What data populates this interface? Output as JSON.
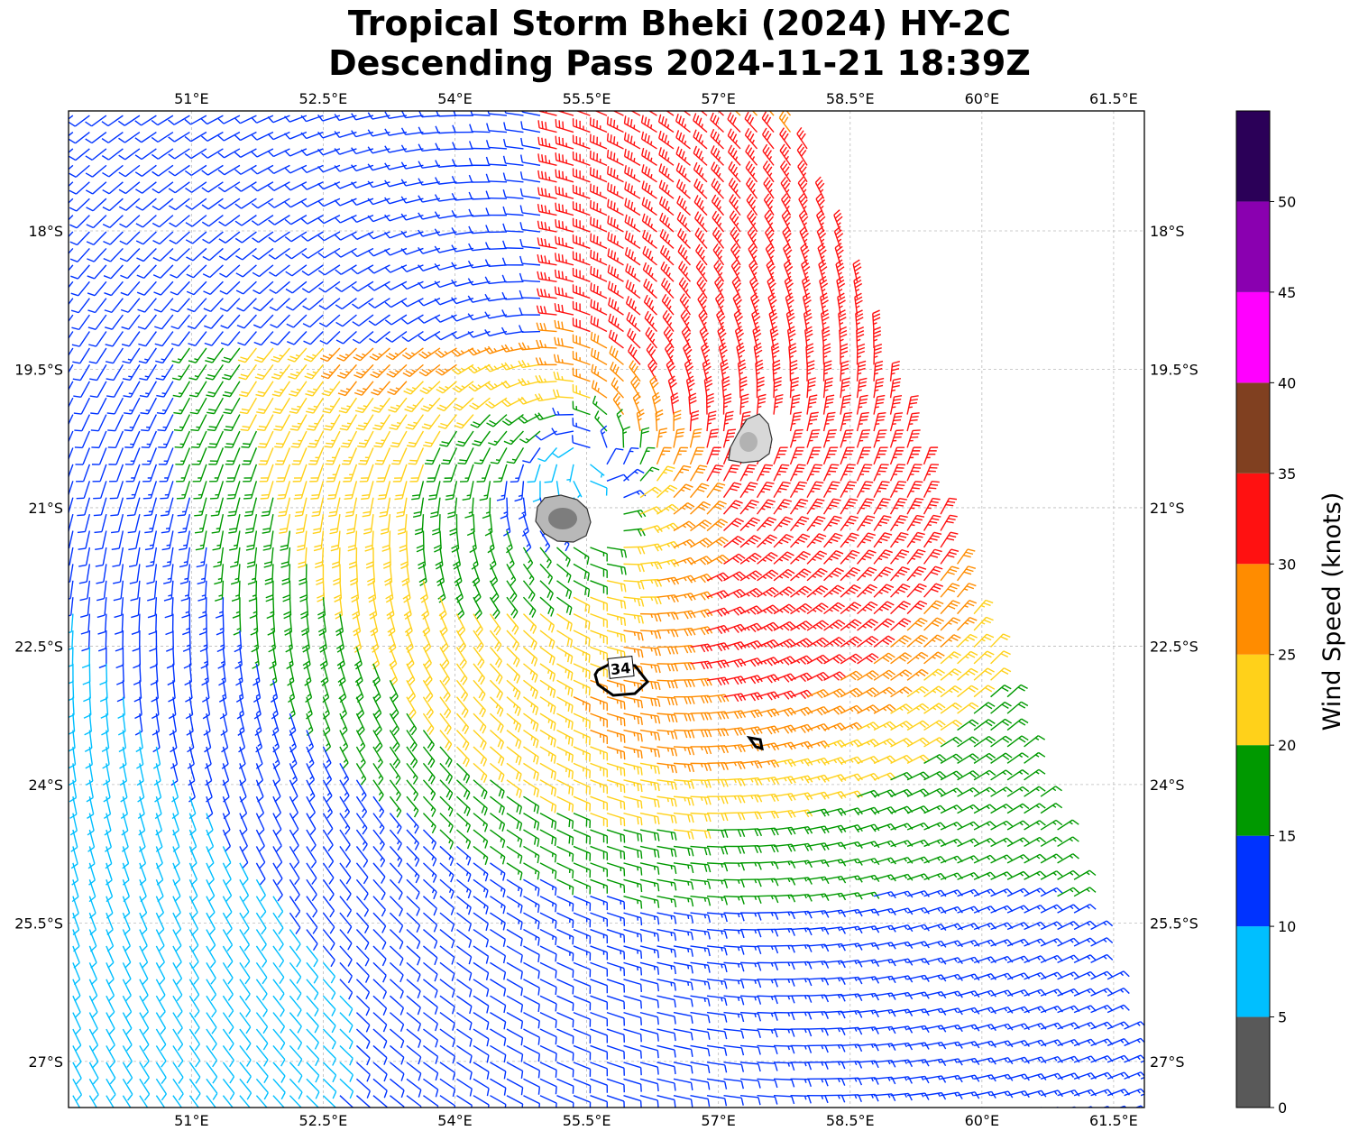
{
  "title": {
    "line1": "Tropical Storm Bheki (2024) HY-2C",
    "line2": "Descending Pass 2024-11-21 18:39Z"
  },
  "map": {
    "lon_range": [
      49.6,
      61.85
    ],
    "lat_range": [
      -27.5,
      -16.7
    ],
    "lon_ticks": [
      {
        "value": 51.0,
        "label": "51°E"
      },
      {
        "value": 52.5,
        "label": "52.5°E"
      },
      {
        "value": 54.0,
        "label": "54°E"
      },
      {
        "value": 55.5,
        "label": "55.5°E"
      },
      {
        "value": 57.0,
        "label": "57°E"
      },
      {
        "value": 58.5,
        "label": "58.5°E"
      },
      {
        "value": 60.0,
        "label": "60°E"
      },
      {
        "value": 61.5,
        "label": "61.5°E"
      }
    ],
    "lat_ticks": [
      {
        "value": -18.0,
        "label": "18°S"
      },
      {
        "value": -19.5,
        "label": "19.5°S"
      },
      {
        "value": -21.0,
        "label": "21°S"
      },
      {
        "value": -22.5,
        "label": "22.5°S"
      },
      {
        "value": -24.0,
        "label": "24°S"
      },
      {
        "value": -25.5,
        "label": "25.5°S"
      },
      {
        "value": -27.0,
        "label": "27°S"
      }
    ],
    "grid": true,
    "storm_center": {
      "lon": 55.55,
      "lat": -20.5
    },
    "contour_label": "34",
    "land": [
      "Réunion",
      "Mauritius"
    ]
  },
  "colorbar": {
    "label": "Wind Speed (knots)",
    "bins": [
      {
        "min": 0,
        "max": 5,
        "color": "#595959"
      },
      {
        "min": 5,
        "max": 10,
        "color": "#00bfff"
      },
      {
        "min": 10,
        "max": 15,
        "color": "#0033ff"
      },
      {
        "min": 15,
        "max": 20,
        "color": "#009900"
      },
      {
        "min": 20,
        "max": 25,
        "color": "#ffd11a"
      },
      {
        "min": 25,
        "max": 30,
        "color": "#ff8c00"
      },
      {
        "min": 30,
        "max": 35,
        "color": "#ff1111"
      },
      {
        "min": 35,
        "max": 40,
        "color": "#804020"
      },
      {
        "min": 40,
        "max": 45,
        "color": "#ff00ff"
      },
      {
        "min": 45,
        "max": 50,
        "color": "#8a00b0"
      },
      {
        "min": 50,
        "max": 55,
        "color": "#2b0058"
      }
    ],
    "ticks": [
      "0",
      "5",
      "10",
      "15",
      "20",
      "25",
      "30",
      "35",
      "40",
      "45",
      "50"
    ]
  }
}
